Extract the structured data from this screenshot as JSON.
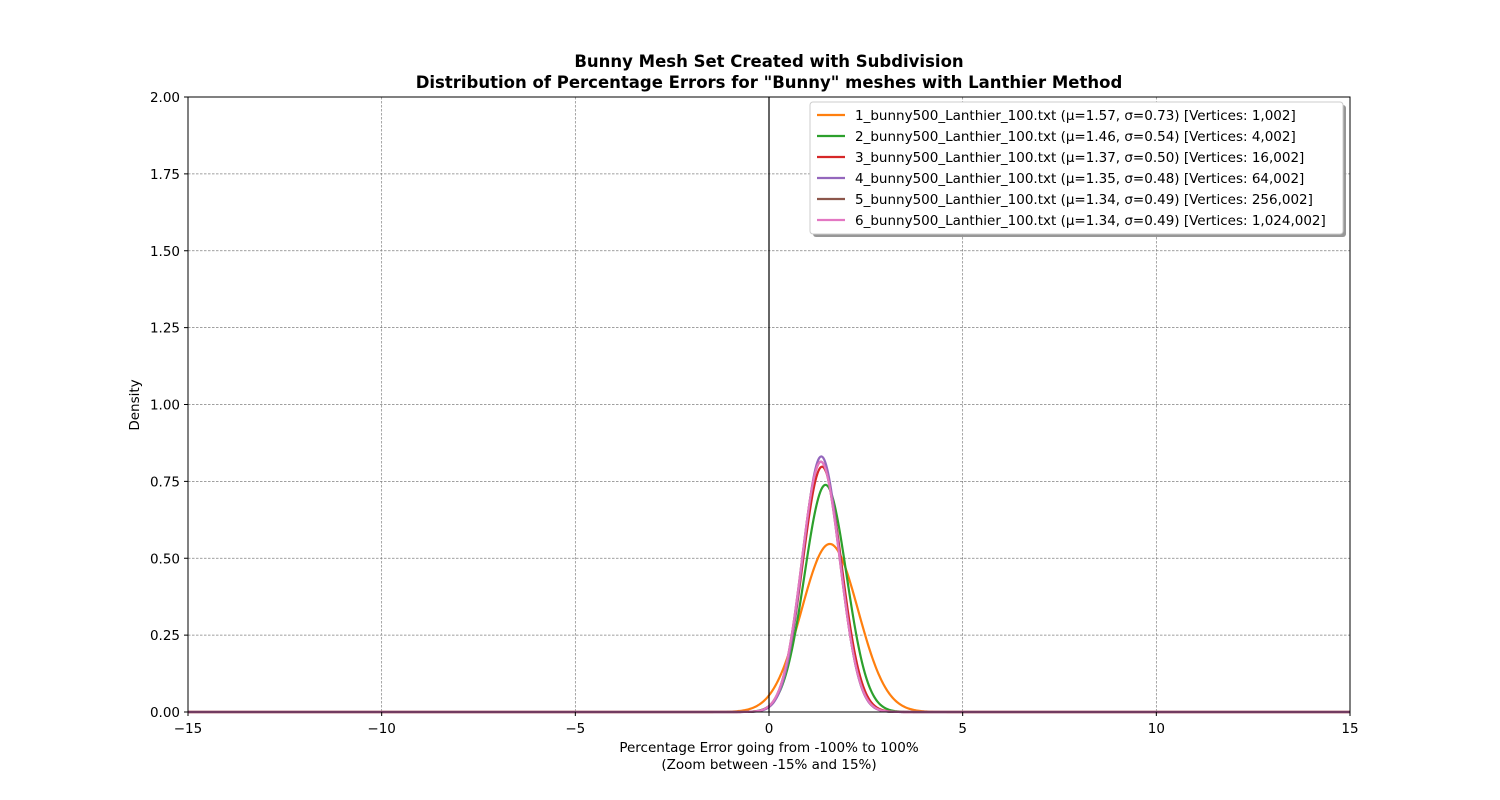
{
  "chart_data": {
    "type": "line",
    "title": "Bunny Mesh Set Created with Subdivision",
    "subtitle": "Distribution of Percentage Errors for \"Bunny\" meshes with Lanthier Method",
    "xlabel": "Percentage Error going from -100% to 100%",
    "xlabel2": "(Zoom between -15% and 15%)",
    "ylabel": "Density",
    "xlim": [
      -15,
      15
    ],
    "ylim": [
      0,
      2
    ],
    "x_ticks": [
      -15,
      -10,
      -5,
      0,
      5,
      10,
      15
    ],
    "x_tick_labels": [
      "−15",
      "−10",
      "−5",
      "0",
      "5",
      "10",
      "15"
    ],
    "y_ticks": [
      0,
      0.25,
      0.5,
      0.75,
      1.0,
      1.25,
      1.5,
      1.75,
      2.0
    ],
    "y_tick_labels": [
      "0.00",
      "0.25",
      "0.50",
      "0.75",
      "1.00",
      "1.25",
      "1.50",
      "1.75",
      "2.00"
    ],
    "grid": true,
    "vertical_line_x": 0,
    "legend_position": "top-right",
    "series": [
      {
        "name": "1_bunny500_Lanthier_100.txt (μ=1.57, σ=0.73) [Vertices: 1,002]",
        "mu": 1.57,
        "sigma": 0.73,
        "color": "#ff7f0e"
      },
      {
        "name": "2_bunny500_Lanthier_100.txt (μ=1.46, σ=0.54) [Vertices: 4,002]",
        "mu": 1.46,
        "sigma": 0.54,
        "color": "#2ca02c"
      },
      {
        "name": "3_bunny500_Lanthier_100.txt (μ=1.37, σ=0.50) [Vertices: 16,002]",
        "mu": 1.37,
        "sigma": 0.5,
        "color": "#d62728"
      },
      {
        "name": "4_bunny500_Lanthier_100.txt (μ=1.35, σ=0.48) [Vertices: 64,002]",
        "mu": 1.35,
        "sigma": 0.48,
        "color": "#9467bd"
      },
      {
        "name": "5_bunny500_Lanthier_100.txt (μ=1.34, σ=0.49) [Vertices: 256,002]",
        "mu": 1.34,
        "sigma": 0.49,
        "color": "#8c564b"
      },
      {
        "name": "6_bunny500_Lanthier_100.txt (μ=1.34, σ=0.49) [Vertices: 1,024,002]",
        "mu": 1.34,
        "sigma": 0.49,
        "color": "#e377c2"
      }
    ]
  }
}
